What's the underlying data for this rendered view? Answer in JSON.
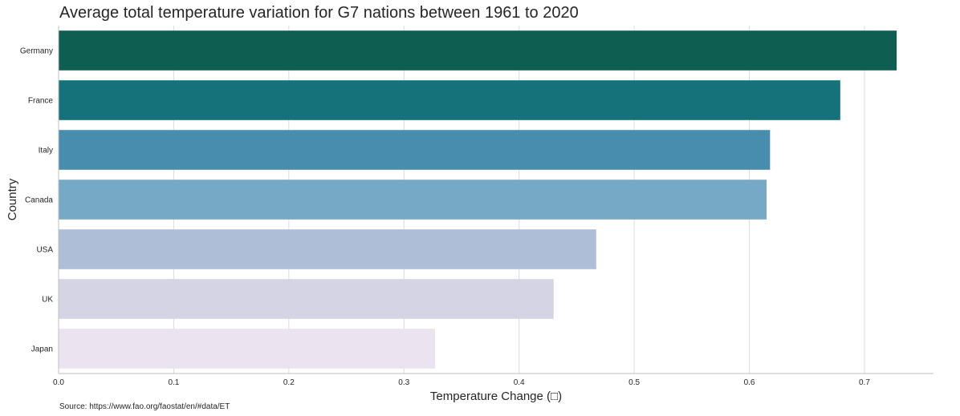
{
  "chart_data": {
    "type": "bar",
    "orientation": "horizontal",
    "title": "Average total temperature variation for G7 nations between 1961 to 2020",
    "xlabel": "Temperature Change (□)",
    "ylabel": "Country",
    "categories": [
      "Germany",
      "France",
      "Italy",
      "Canada",
      "USA",
      "UK",
      "Japan"
    ],
    "values": [
      0.728,
      0.679,
      0.618,
      0.615,
      0.467,
      0.43,
      0.327
    ],
    "colors": [
      "#0e5e52",
      "#15727b",
      "#498dae",
      "#76a9c6",
      "#adbed6",
      "#d4d4e4",
      "#ebe3ef"
    ],
    "xlim": [
      0,
      0.76
    ],
    "xticks": [
      0.0,
      0.1,
      0.2,
      0.3,
      0.4,
      0.5,
      0.6,
      0.7
    ],
    "xtick_labels": [
      "0.0",
      "0.1",
      "0.2",
      "0.3",
      "0.4",
      "0.5",
      "0.6",
      "0.7"
    ],
    "grid": "vertical",
    "legend": "none"
  },
  "source_note": "Source: https://www.fao.org/faostat/en/#data/ET"
}
